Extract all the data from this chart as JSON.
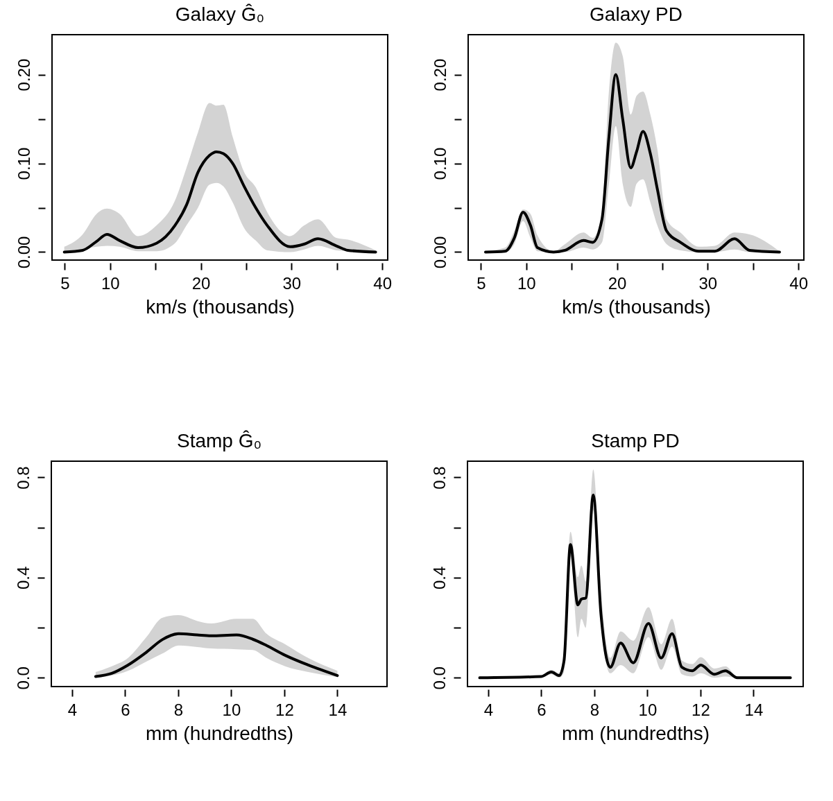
{
  "chart_data": [
    {
      "type": "line",
      "title": "Galaxy Ĝ₀",
      "xlabel": "km/s (thousands)",
      "xlim": [
        3.6,
        40.6
      ],
      "ylim": [
        -0.009,
        0.245
      ],
      "xticks": [
        5,
        10,
        {
          "value": 15,
          "label": null
        },
        20,
        {
          "value": 25,
          "label": null
        },
        30,
        {
          "value": 35,
          "label": null
        },
        40
      ],
      "yticks": [
        {
          "value": 0,
          "label": "0.00"
        },
        {
          "value": 0.05,
          "label": null
        },
        {
          "value": 0.1,
          "label": "0.10"
        },
        {
          "value": 0.15,
          "label": null
        },
        {
          "value": 0.2,
          "label": "0.20"
        }
      ],
      "grid": false,
      "series": [
        {
          "color": "#000000",
          "x": [
            4.95,
            6.98,
            8.51,
            9.65,
            11.05,
            13.08,
            15.12,
            17.15,
            18.42,
            19.69,
            20.96,
            21.73,
            22.49,
            23.51,
            24.78,
            26.05,
            27.32,
            29.86,
            31.39,
            32.91,
            34.94,
            36.21,
            39.27
          ],
          "values": [
            0,
            0.002,
            0.012,
            0.02,
            0.013,
            0.005,
            0.01,
            0.03,
            0.053,
            0.09,
            0.109,
            0.113,
            0.111,
            0.1,
            0.074,
            0.05,
            0.03,
            0.006,
            0.009,
            0.015,
            0.007,
            0.002,
            0
          ],
          "lower": [
            0,
            0.003,
            0.006,
            0.007,
            0.006,
            0.001,
            0.001,
            0.01,
            0.03,
            0.05,
            0.076,
            0.078,
            0.074,
            0.056,
            0.027,
            0.013,
            0.002,
            0,
            0.003,
            0.007,
            0.002,
            0.001,
            0
          ],
          "upper": [
            0.006,
            0.02,
            0.043,
            0.049,
            0.043,
            0.018,
            0.03,
            0.058,
            0.095,
            0.135,
            0.168,
            0.165,
            0.166,
            0.13,
            0.09,
            0.073,
            0.045,
            0.018,
            0.03,
            0.037,
            0.016,
            0.014,
            0.002
          ]
        }
      ]
    },
    {
      "type": "line",
      "title": "Galaxy PD",
      "xlabel": "km/s (thousands)",
      "xlim": [
        3.6,
        40.6
      ],
      "ylim": [
        -0.009,
        0.245
      ],
      "xticks": [
        5,
        10,
        {
          "value": 15,
          "label": null
        },
        20,
        {
          "value": 25,
          "label": null
        },
        30,
        {
          "value": 35,
          "label": null
        },
        40
      ],
      "yticks": [
        {
          "value": 0,
          "label": "0.00"
        },
        {
          "value": 0.05,
          "label": null
        },
        {
          "value": 0.1,
          "label": "0.10"
        },
        {
          "value": 0.15,
          "label": null
        },
        {
          "value": 0.2,
          "label": "0.20"
        }
      ],
      "grid": false,
      "series": [
        {
          "color": "#000000",
          "x": [
            5.51,
            7.67,
            8.69,
            9.65,
            10.47,
            11.23,
            13.01,
            14.28,
            16.31,
            17.33,
            18.35,
            19.11,
            19.87,
            20.63,
            21.52,
            22.16,
            22.87,
            23.68,
            24.45,
            25.46,
            26.99,
            29.02,
            30.8,
            32.96,
            34.61,
            37.92
          ],
          "values": [
            0,
            0.001,
            0.016,
            0.045,
            0.03,
            0.005,
            0,
            0.002,
            0.013,
            0.011,
            0.037,
            0.129,
            0.2,
            0.15,
            0.095,
            0.113,
            0.136,
            0.111,
            0.071,
            0.024,
            0.011,
            0.001,
            0.001,
            0.015,
            0.002,
            0
          ],
          "lower": [
            0,
            0,
            0.009,
            0.035,
            0.016,
            0.001,
            0,
            0,
            0.005,
            0.003,
            0.011,
            0.077,
            0.142,
            0.077,
            0.051,
            0.077,
            0.082,
            0.056,
            0.03,
            0.009,
            0.002,
            0,
            0,
            0.003,
            0,
            0
          ],
          "upper": [
            0.001,
            0.005,
            0.024,
            0.048,
            0.043,
            0.019,
            0.001,
            0.009,
            0.022,
            0.016,
            0.045,
            0.181,
            0.236,
            0.221,
            0.155,
            0.176,
            0.181,
            0.155,
            0.116,
            0.037,
            0.022,
            0.006,
            0.007,
            0.022,
            0.02,
            0.001
          ]
        }
      ]
    },
    {
      "type": "line",
      "title": "Stamp Ĝ₀",
      "xlabel": "mm (hundredths)",
      "xlim": [
        3.22,
        15.87
      ],
      "ylim": [
        -0.035,
        0.865
      ],
      "xticks": [
        4,
        6,
        8,
        10,
        12,
        14
      ],
      "yticks": [
        {
          "value": 0,
          "label": "0.0"
        },
        {
          "value": 0.2,
          "label": null
        },
        {
          "value": 0.4,
          "label": "0.4"
        },
        {
          "value": 0.6,
          "label": null
        },
        {
          "value": 0.8,
          "label": "0.8"
        }
      ],
      "grid": false,
      "series": [
        {
          "color": "#000000",
          "x": [
            4.89,
            5.5,
            6.11,
            6.8,
            7.41,
            8.02,
            8.72,
            9.24,
            10.2,
            10.81,
            11.33,
            12.03,
            12.9,
            14.0
          ],
          "values": [
            0.005,
            0.018,
            0.051,
            0.102,
            0.153,
            0.176,
            0.171,
            0.168,
            0.171,
            0.154,
            0.129,
            0.09,
            0.051,
            0.009
          ],
          "lower": [
            0,
            0.009,
            0.028,
            0.065,
            0.097,
            0.129,
            0.123,
            0.117,
            0.114,
            0.111,
            0.079,
            0.046,
            0.023,
            0.003
          ],
          "upper": [
            0.023,
            0.046,
            0.079,
            0.162,
            0.24,
            0.25,
            0.227,
            0.217,
            0.236,
            0.236,
            0.176,
            0.134,
            0.079,
            0.028
          ]
        }
      ]
    },
    {
      "type": "line",
      "title": "Stamp PD",
      "xlabel": "mm (hundredths)",
      "xlim": [
        3.22,
        15.87
      ],
      "ylim": [
        -0.035,
        0.865
      ],
      "xticks": [
        4,
        6,
        8,
        10,
        12,
        14
      ],
      "yticks": [
        {
          "value": 0,
          "label": "0.0"
        },
        {
          "value": 0.2,
          "label": null
        },
        {
          "value": 0.4,
          "label": "0.4"
        },
        {
          "value": 0.6,
          "label": null
        },
        {
          "value": 0.8,
          "label": "0.8"
        }
      ],
      "grid": false,
      "series": [
        {
          "color": "#000000",
          "x": [
            3.68,
            5.99,
            6.38,
            6.68,
            6.86,
            7.1,
            7.38,
            7.51,
            7.68,
            7.96,
            8.25,
            8.6,
            8.99,
            9.47,
            10.04,
            10.52,
            10.93,
            11.3,
            11.69,
            12.01,
            12.52,
            12.94,
            13.39,
            15.39
          ],
          "values": [
            0,
            0.005,
            0.023,
            0.009,
            0.069,
            0.532,
            0.291,
            0.314,
            0.319,
            0.73,
            0.254,
            0.042,
            0.139,
            0.06,
            0.217,
            0.079,
            0.176,
            0.042,
            0.028,
            0.051,
            0.014,
            0.028,
            0,
            0
          ],
          "lower": [
            0,
            0,
            0.014,
            0,
            0.023,
            0.485,
            0.162,
            0.236,
            0.199,
            0.67,
            0.217,
            0.018,
            0.051,
            0.018,
            0.162,
            0.032,
            0.125,
            0.014,
            0.005,
            0.018,
            0,
            0.005,
            0,
            0
          ],
          "upper": [
            0,
            0.009,
            0.032,
            0.018,
            0.116,
            0.583,
            0.402,
            0.448,
            0.384,
            0.832,
            0.347,
            0.079,
            0.185,
            0.148,
            0.282,
            0.134,
            0.236,
            0.069,
            0.055,
            0.083,
            0.037,
            0.046,
            0.005,
            0
          ]
        }
      ]
    }
  ]
}
